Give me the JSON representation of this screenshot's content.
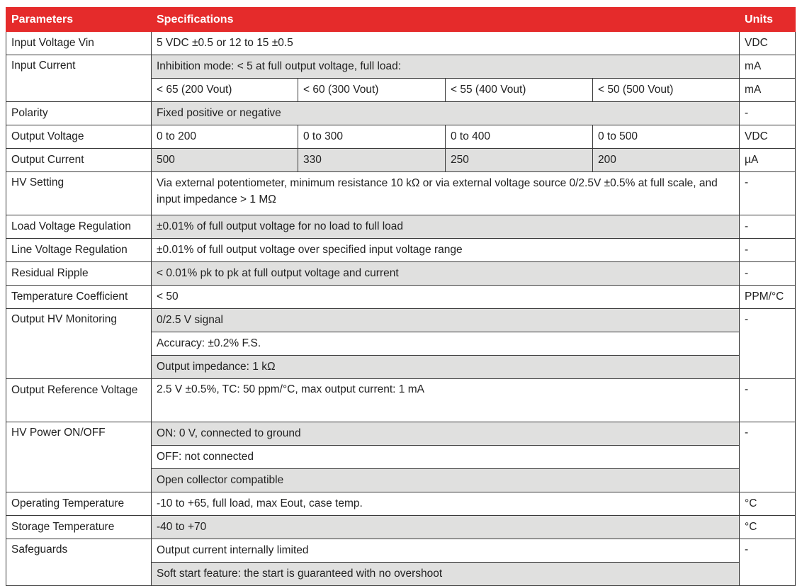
{
  "header": {
    "parameters": "Parameters",
    "specifications": "Specifications",
    "units": "Units"
  },
  "rows": {
    "input_voltage": {
      "param": "Input Voltage Vin",
      "spec": "5 VDC ±0.5 or 12 to 15 ±0.5",
      "unit": "VDC"
    },
    "input_current": {
      "param": "Input Current",
      "spec": "Inhibition mode: < 5 at full output voltage, full load:",
      "unit": "mA",
      "values": [
        "< 65 (200 Vout)",
        "< 60 (300 Vout)",
        "< 55 (400 Vout)",
        "< 50 (500 Vout)"
      ],
      "values_unit": "mA"
    },
    "polarity": {
      "param": "Polarity",
      "spec": "Fixed positive or negative",
      "unit": "-"
    },
    "output_voltage": {
      "param": "Output Voltage",
      "values": [
        "0 to 200",
        "0 to 300",
        "0 to 400",
        "0 to 500"
      ],
      "unit": "VDC"
    },
    "output_current": {
      "param": "Output Current",
      "values": [
        "500",
        "330",
        "250",
        "200"
      ],
      "unit": "µA"
    },
    "hv_setting": {
      "param": "HV Setting",
      "spec": "Via external potentiometer, minimum resistance 10 kΩ or via external voltage source 0/2.5V ±0.5% at full scale, and input impedance > 1 MΩ",
      "unit": "-"
    },
    "load_regulation": {
      "param": "Load Voltage Regulation",
      "spec": "±0.01% of full output voltage for no load to full load",
      "unit": "-"
    },
    "line_regulation": {
      "param": "Line Voltage Regulation",
      "spec": "±0.01% of full output voltage over specified input voltage range",
      "unit": "-"
    },
    "residual_ripple": {
      "param": "Residual Ripple",
      "spec": "< 0.01% pk to pk at full output voltage and current",
      "unit": "-"
    },
    "temp_coefficient": {
      "param": "Temperature Coefficient",
      "spec": "< 50",
      "unit": "PPM/°C"
    },
    "hv_monitoring": {
      "param": "Output HV Monitoring",
      "specs": [
        "0/2.5 V signal",
        "Accuracy: ±0.2% F.S.",
        "Output impedance: 1 kΩ"
      ],
      "unit": "-"
    },
    "reference_voltage": {
      "param": "Output Reference Voltage",
      "spec": "2.5 V ±0.5%, TC: 50 ppm/°C, max output current: 1 mA",
      "unit": "-"
    },
    "hv_power": {
      "param": "HV Power ON/OFF",
      "specs": [
        "ON: 0 V, connected to ground",
        "OFF: not connected",
        "Open collector compatible"
      ],
      "unit": "-"
    },
    "operating_temp": {
      "param": "Operating Temperature",
      "spec": "-10 to +65, full load, max Eout, case temp.",
      "unit": "°C"
    },
    "storage_temp": {
      "param": "Storage Temperature",
      "spec": "-40 to +70",
      "unit": "°C"
    },
    "safeguards": {
      "param": "Safeguards",
      "specs": [
        "Output current internally limited",
        "Soft start feature: the start is guaranteed with no overshoot"
      ],
      "unit": "-"
    }
  },
  "colors": {
    "header_bg": "#e52b2b",
    "shade": "#e0e0df",
    "border": "#3a3a3a"
  }
}
